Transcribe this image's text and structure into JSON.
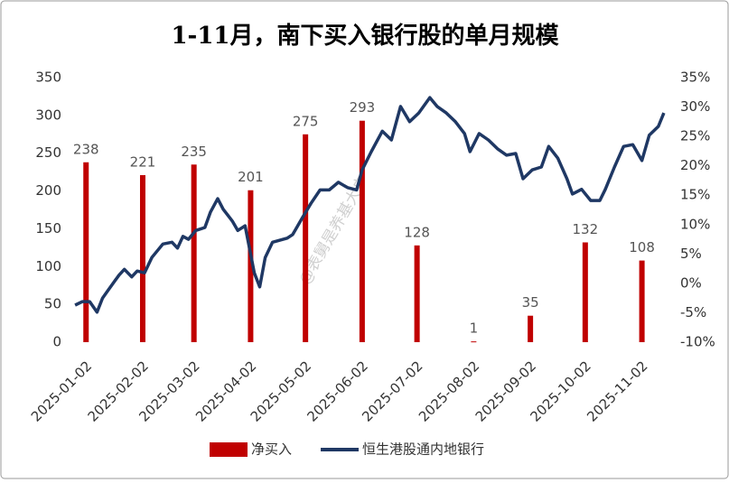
{
  "chart_data": {
    "type": "combo",
    "title": "1-11月，南下买入银行股的单月规模",
    "watermark": "@表舅是养基大户",
    "xlim": [
      "2024-12-23",
      "2025-11-19"
    ],
    "xticks": [
      "2025-01-02",
      "2025-02-02",
      "2025-03-02",
      "2025-04-02",
      "2025-05-02",
      "2025-06-02",
      "2025-07-02",
      "2025-08-02",
      "2025-09-02",
      "2025-10-02",
      "2025-11-02"
    ],
    "ylim": [
      0,
      350
    ],
    "yticks": [
      0,
      50,
      100,
      150,
      200,
      250,
      300,
      350
    ],
    "y2lim": [
      -10,
      35
    ],
    "y2ticks": [
      {
        "value": -10,
        "label": "-10%"
      },
      {
        "value": -5,
        "label": "-5%"
      },
      {
        "value": 0,
        "label": "0%"
      },
      {
        "value": 5,
        "label": "5%"
      },
      {
        "value": 10,
        "label": "10%"
      },
      {
        "value": 15,
        "label": "15%"
      },
      {
        "value": 20,
        "label": "20%"
      },
      {
        "value": 25,
        "label": "25%"
      },
      {
        "value": 30,
        "label": "30%"
      },
      {
        "value": 35,
        "label": "35%"
      }
    ],
    "series": [
      {
        "name": "净买入",
        "type": "bar",
        "color": "#c00000",
        "x": [
          "2025-01-02",
          "2025-02-02",
          "2025-03-02",
          "2025-04-02",
          "2025-05-02",
          "2025-06-02",
          "2025-07-02",
          "2025-08-02",
          "2025-09-02",
          "2025-10-02",
          "2025-11-02"
        ],
        "values": [
          238,
          221,
          235,
          201,
          275,
          293,
          128,
          1,
          35,
          132,
          108
        ]
      },
      {
        "name": "恒生港股通内地银行",
        "type": "line",
        "color": "#1f3864",
        "axis": "y2",
        "x": [
          "2024-12-27",
          "2024-12-31",
          "2025-01-04",
          "2025-01-08",
          "2025-01-11",
          "2025-01-14",
          "2025-01-20",
          "2025-01-23",
          "2025-01-27",
          "2025-01-30",
          "2025-02-03",
          "2025-02-07",
          "2025-02-13",
          "2025-02-18",
          "2025-02-21",
          "2025-02-24",
          "2025-02-27",
          "2025-03-03",
          "2025-03-08",
          "2025-03-11",
          "2025-03-15",
          "2025-03-18",
          "2025-03-23",
          "2025-03-26",
          "2025-03-30",
          "2025-04-04",
          "2025-04-07",
          "2025-04-10",
          "2025-04-14",
          "2025-04-22",
          "2025-04-25",
          "2025-04-30",
          "2025-05-05",
          "2025-05-10",
          "2025-05-15",
          "2025-05-20",
          "2025-05-25",
          "2025-05-30",
          "2025-06-02",
          "2025-06-07",
          "2025-06-13",
          "2025-06-18",
          "2025-06-23",
          "2025-06-28",
          "2025-07-03",
          "2025-07-09",
          "2025-07-13",
          "2025-07-18",
          "2025-07-23",
          "2025-07-28",
          "2025-07-31",
          "2025-08-05",
          "2025-08-10",
          "2025-08-15",
          "2025-08-20",
          "2025-08-25",
          "2025-08-29",
          "2025-09-03",
          "2025-09-08",
          "2025-09-12",
          "2025-09-17",
          "2025-09-22",
          "2025-09-25",
          "2025-09-30",
          "2025-10-05",
          "2025-10-10",
          "2025-10-13",
          "2025-10-18",
          "2025-10-23",
          "2025-10-28",
          "2025-11-02",
          "2025-11-06",
          "2025-11-11",
          "2025-11-14"
        ],
        "values": [
          -3.7,
          -3.1,
          -3.1,
          -4.9,
          -2.5,
          -1.2,
          1.4,
          2.4,
          1.1,
          2.1,
          1.8,
          4.4,
          6.7,
          7.0,
          6.0,
          8.0,
          7.5,
          9.0,
          9.5,
          12.1,
          14.4,
          12.6,
          10.6,
          9.0,
          9.8,
          1.8,
          -0.6,
          4.4,
          7.0,
          7.7,
          8.3,
          11.0,
          13.6,
          15.9,
          15.9,
          17.2,
          16.3,
          15.9,
          19.3,
          22.4,
          25.9,
          24.4,
          30.1,
          27.5,
          29.0,
          31.6,
          30.1,
          29.0,
          27.5,
          25.5,
          22.4,
          25.5,
          24.4,
          22.9,
          21.8,
          22.1,
          17.8,
          19.3,
          19.8,
          23.3,
          21.3,
          17.8,
          15.2,
          16.0,
          14.1,
          14.1,
          16.0,
          19.8,
          23.3,
          23.6,
          20.9,
          25.2,
          26.7,
          29.0
        ]
      }
    ]
  }
}
